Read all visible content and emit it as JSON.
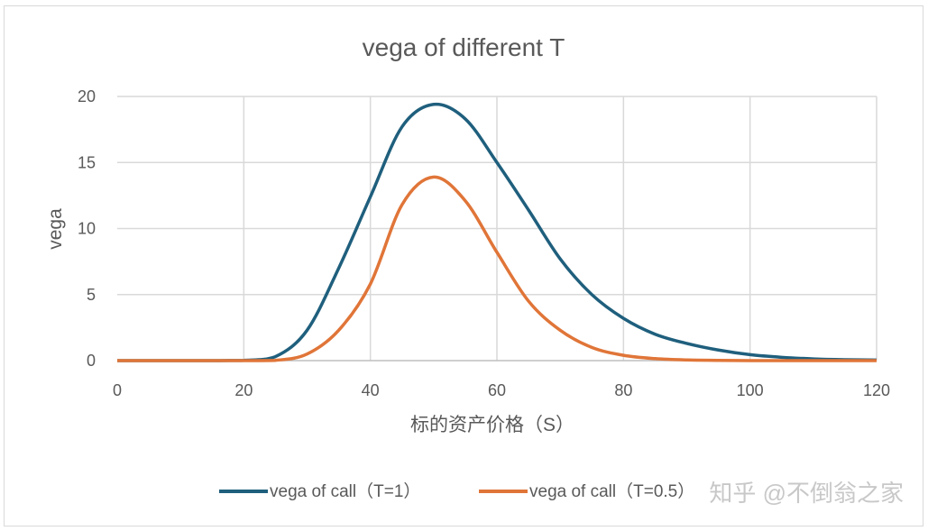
{
  "chart_data": {
    "type": "line",
    "title": "vega of different T",
    "xlabel": "标的资产价格（S）",
    "ylabel": "vega",
    "xlim": [
      0,
      120
    ],
    "ylim": [
      0,
      20
    ],
    "xticks": [
      "0",
      "20",
      "40",
      "60",
      "80",
      "100",
      "120"
    ],
    "yticks": [
      "0",
      "5",
      "10",
      "15",
      "20"
    ],
    "grid": true,
    "legend_position": "bottom",
    "x": [
      0,
      5,
      10,
      15,
      20,
      25,
      30,
      35,
      40,
      45,
      50,
      55,
      60,
      65,
      70,
      75,
      80,
      85,
      90,
      95,
      100,
      105,
      110,
      115,
      120
    ],
    "series": [
      {
        "name": "vega of call（T=1）",
        "color": "#1f5f7d",
        "values": [
          0,
          0,
          0,
          0,
          0.02,
          0.3,
          2.3,
          7.0,
          12.4,
          17.7,
          19.4,
          18.3,
          15.0,
          11.4,
          7.7,
          5.0,
          3.2,
          2.0,
          1.3,
          0.8,
          0.45,
          0.25,
          0.13,
          0.07,
          0.04
        ]
      },
      {
        "name": "vega of call（T=0.5）",
        "color": "#e07538",
        "values": [
          0,
          0,
          0,
          0,
          0,
          0.02,
          0.5,
          2.3,
          5.8,
          11.8,
          13.9,
          12.1,
          8.2,
          4.5,
          2.3,
          1.0,
          0.4,
          0.15,
          0.05,
          0.02,
          0,
          0,
          0,
          0,
          0
        ]
      }
    ]
  },
  "watermark": "知乎 @不倒翁之家"
}
